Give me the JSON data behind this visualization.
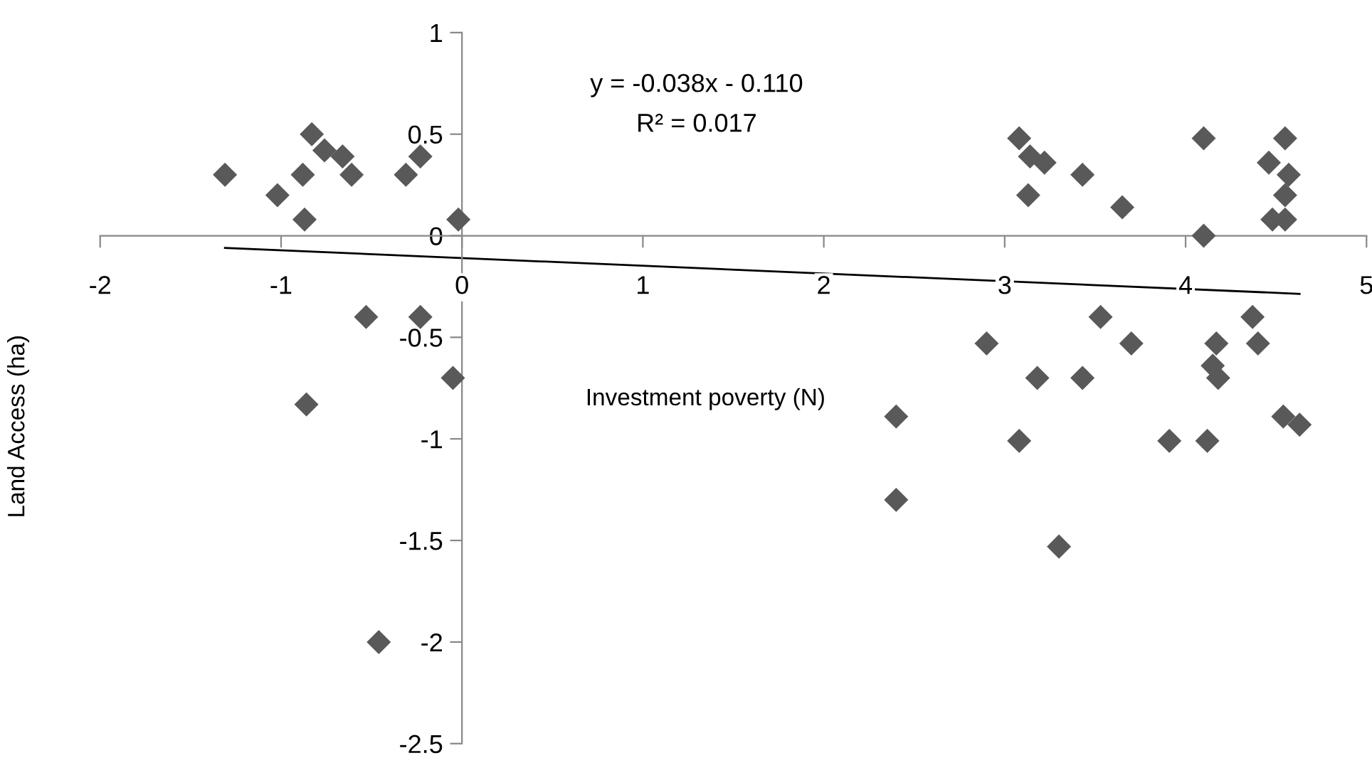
{
  "chart_data": {
    "type": "scatter",
    "xlabel": "Investment poverty (N)",
    "ylabel": "Land Access (ha)",
    "annotations": [
      "y = -0.038x - 0.110",
      "R² = 0.017"
    ],
    "xlim": [
      -2,
      5
    ],
    "ylim": [
      -2.5,
      1
    ],
    "xticks": [
      -2,
      -1,
      0,
      1,
      2,
      3,
      4,
      5
    ],
    "yticks": [
      -2.5,
      -2,
      -1.5,
      -1,
      -0.5,
      0,
      0.5,
      1
    ],
    "grid": false,
    "series": [
      {
        "marker": "diamond",
        "color": "#595959",
        "x": [
          -1.31,
          -1.02,
          -0.88,
          -0.87,
          -0.83,
          -0.76,
          -0.66,
          -0.61,
          -0.31,
          -0.23,
          -0.02,
          -0.53,
          -0.23,
          -0.05,
          -0.86,
          -0.46,
          3.08,
          3.14,
          3.22,
          3.13,
          3.43,
          3.65,
          4.1,
          4.1,
          4.55,
          4.46,
          4.57,
          4.55,
          4.48,
          4.55,
          3.53,
          2.9,
          3.7,
          3.18,
          3.43,
          4.17,
          4.15,
          4.18,
          4.37,
          4.4,
          2.4,
          4.54,
          4.63,
          3.08,
          3.91,
          4.12,
          2.4,
          3.3
        ],
        "values": [
          0.3,
          0.2,
          0.3,
          0.08,
          0.5,
          0.42,
          0.39,
          0.3,
          0.3,
          0.39,
          0.08,
          -0.4,
          -0.4,
          -0.7,
          -0.83,
          -2.0,
          0.48,
          0.39,
          0.36,
          0.2,
          0.3,
          0.14,
          0.48,
          0.0,
          0.48,
          0.36,
          0.3,
          0.2,
          0.08,
          0.08,
          -0.4,
          -0.53,
          -0.53,
          -0.7,
          -0.7,
          -0.53,
          -0.64,
          -0.7,
          -0.4,
          -0.53,
          -0.89,
          -0.89,
          -0.93,
          -1.01,
          -1.01,
          -1.01,
          -1.3,
          -1.53
        ]
      },
      {
        "type": "line",
        "color": "#000000",
        "x": [
          -1.31,
          4.63
        ],
        "values": [
          -0.06,
          -0.286
        ]
      }
    ]
  }
}
